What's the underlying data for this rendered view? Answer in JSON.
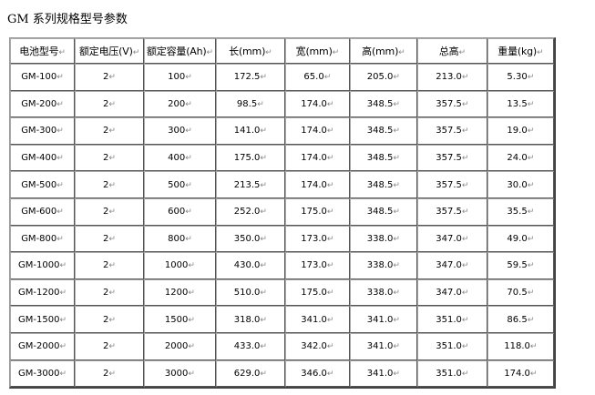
{
  "title": "GM 系列规格型号参数",
  "headers": [
    "电池型号",
    "额定电压(V)",
    "额定容量(Ah)",
    "长(mm)",
    "宽(mm)",
    "高(mm)",
    "总高",
    "重量(kg)"
  ],
  "rows": [
    [
      "GM-100",
      "2",
      "100",
      "172.5",
      "65.0",
      "205.0",
      "213.0",
      "5.30"
    ],
    [
      "GM-200",
      "2",
      "200",
      "98.5",
      "174.0",
      "348.5",
      "357.5",
      "13.5"
    ],
    [
      "GM-300",
      "2",
      "300",
      "141.0",
      "174.0",
      "348.5",
      "357.5",
      "19.0"
    ],
    [
      "GM-400",
      "2",
      "400",
      "175.0",
      "174.0",
      "348.5",
      "357.5",
      "24.0"
    ],
    [
      "GM-500",
      "2",
      "500",
      "213.5",
      "174.0",
      "348.5",
      "357.5",
      "30.0"
    ],
    [
      "GM-600",
      "2",
      "600",
      "252.0",
      "175.0",
      "348.5",
      "357.5",
      "35.5"
    ],
    [
      "GM-800",
      "2",
      "800",
      "350.0",
      "173.0",
      "338.0",
      "347.0",
      "49.0"
    ],
    [
      "GM-1000",
      "2",
      "1000",
      "430.0",
      "173.0",
      "338.0",
      "347.0",
      "59.5"
    ],
    [
      "GM-1200",
      "2",
      "1200",
      "510.0",
      "175.0",
      "338.0",
      "347.0",
      "70.5"
    ],
    [
      "GM-1500",
      "2",
      "1500",
      "318.0",
      "341.0",
      "341.0",
      "351.0",
      "86.5"
    ],
    [
      "GM-2000",
      "2",
      "2000",
      "433.0",
      "342.0",
      "341.0",
      "351.0",
      "118.0"
    ],
    [
      "GM-3000",
      "2",
      "3000",
      "629.0",
      "346.0",
      "341.0",
      "351.0",
      "174.0"
    ]
  ]
}
